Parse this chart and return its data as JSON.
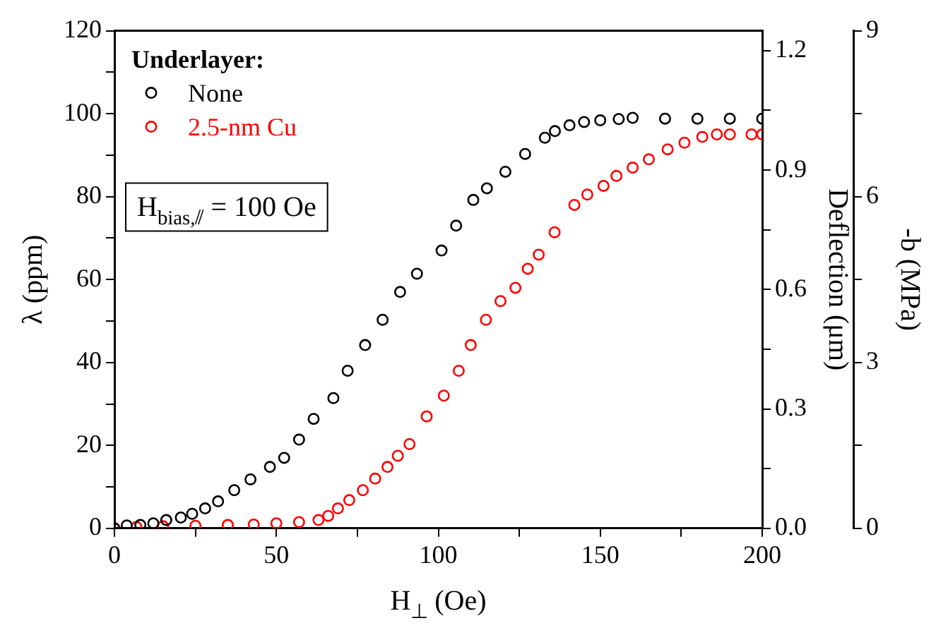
{
  "chart_data": {
    "type": "scatter",
    "xlabel": "H$_{⊥}$ (Oe)",
    "ylabel": "λ (ppm)",
    "y2label": "Deflection (μm)",
    "y3label": "-b (MPa)",
    "legend_title": "Underlayer:",
    "legend": "top left",
    "marker": "circle",
    "grid": false,
    "annotations": [
      "H$_{bias,⫽}$ = 100 Oe"
    ],
    "xlim": [
      0,
      200
    ],
    "xticks": [
      0,
      {
        "value": 25,
        "label": null
      },
      50,
      {
        "value": 75,
        "label": null
      },
      100,
      {
        "value": 125,
        "label": null
      },
      150,
      {
        "value": 175,
        "label": null
      },
      200
    ],
    "ylim": [
      0,
      120
    ],
    "yticks": [
      0,
      {
        "value": 10,
        "label": null
      },
      20,
      {
        "value": 30,
        "label": null
      },
      40,
      {
        "value": 50,
        "label": null
      },
      60,
      {
        "value": 70,
        "label": null
      },
      80,
      {
        "value": 90,
        "label": null
      },
      100,
      {
        "value": 110,
        "label": null
      },
      120
    ],
    "y2lim": [
      0,
      1.25
    ],
    "y2ticks": [
      {
        "value": 0,
        "label": "0.0"
      },
      {
        "value": 0.15,
        "label": null
      },
      0.3,
      {
        "value": 0.45,
        "label": null
      },
      0.6,
      {
        "value": 0.75,
        "label": null
      },
      0.9,
      {
        "value": 1.05,
        "label": null
      },
      1.2
    ],
    "y3lim": [
      0,
      9
    ],
    "y3ticks": [
      0,
      {
        "value": 1.5,
        "label": null
      },
      3,
      {
        "value": 4.5,
        "label": null
      },
      6,
      {
        "value": 7.5,
        "label": null
      },
      9
    ],
    "series": [
      {
        "name": "None",
        "color": "#000000",
        "x": [
          0,
          3.8,
          8,
          12,
          16,
          20.5,
          24,
          28,
          32,
          37,
          42,
          48,
          52.4,
          57,
          61.5,
          67.6,
          72,
          77.4,
          82.8,
          88.2,
          93.4,
          101,
          105.5,
          110.8,
          115,
          120.7,
          126.8,
          132.9,
          136,
          140.5,
          145,
          150,
          155.7,
          160,
          170,
          180,
          190,
          200
        ],
        "values": [
          0,
          0.7,
          0.8,
          1.2,
          2,
          2.6,
          3.5,
          4.8,
          6.5,
          9.2,
          11.8,
          14.8,
          17,
          21.4,
          26.4,
          31.4,
          38,
          44.2,
          50.3,
          57,
          61.4,
          67,
          73,
          79.2,
          82,
          86,
          90.3,
          94.2,
          95.8,
          97.2,
          98,
          98.4,
          98.7,
          99,
          98.8,
          98.8,
          98.8,
          98.8
        ]
      },
      {
        "name": "2.5-nm Cu",
        "color": "#ff0000",
        "x": [
          0,
          6.8,
          15,
          25,
          35,
          43,
          50,
          57,
          63,
          66,
          69,
          72.5,
          76.7,
          80.5,
          84.3,
          87.5,
          91.1,
          96.4,
          101.7,
          106.3,
          110,
          114.7,
          119.2,
          123.8,
          127.6,
          131,
          135.9,
          142,
          146,
          151,
          155,
          160,
          165,
          170.8,
          176,
          181.5,
          186,
          190,
          196.7,
          200
        ],
        "values": [
          0,
          0.3,
          0.5,
          0.6,
          0.8,
          0.9,
          1.2,
          1.5,
          2,
          3,
          4.8,
          6.8,
          9.2,
          12,
          14.8,
          17.5,
          20.3,
          27,
          32,
          38,
          44.2,
          50.3,
          54.8,
          58,
          62.6,
          66,
          71.4,
          78,
          80.5,
          82.6,
          85,
          87,
          89,
          91.4,
          93,
          94.4,
          95,
          95,
          95,
          95
        ]
      }
    ]
  }
}
